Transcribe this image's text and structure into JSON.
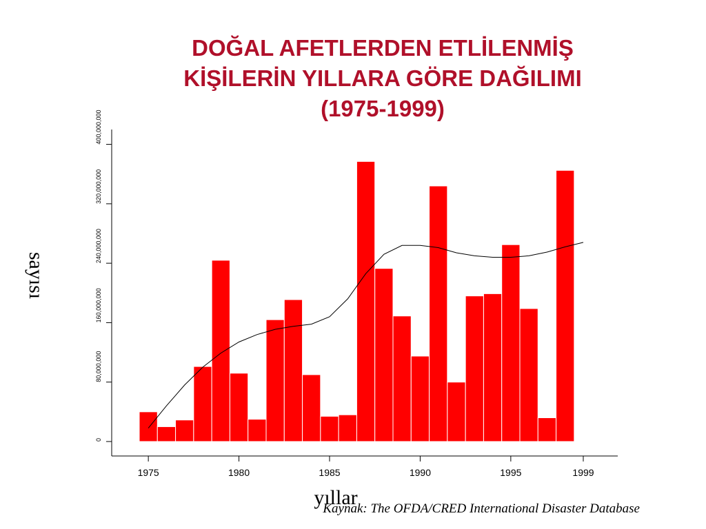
{
  "title": {
    "line1": "DOĞAL AFETLERDEN ETLİLENMİŞ",
    "line2": "KİŞİLERİN YILLARA GÖRE DAĞILIMI",
    "line3": "(1975-1999)"
  },
  "source": "Kaynak: The OFDA/CRED International Disaster Database",
  "colors": {
    "title": "#b0102a",
    "bars": "#ff0000",
    "trend": "#000000"
  },
  "chart_data": {
    "type": "bar",
    "xlabel": "yıllar",
    "ylabel": "sayısı",
    "x": [
      1975,
      1976,
      1977,
      1978,
      1979,
      1980,
      1981,
      1982,
      1983,
      1984,
      1985,
      1986,
      1987,
      1988,
      1989,
      1990,
      1991,
      1992,
      1993,
      1994,
      1995,
      1996,
      1997,
      1998
    ],
    "values": [
      40000000,
      20000000,
      29000000,
      101000000,
      244000000,
      92000000,
      30000000,
      164000000,
      191000000,
      90000000,
      34000000,
      36000000,
      377000000,
      233000000,
      169000000,
      115000000,
      344000000,
      80000000,
      196000000,
      199000000,
      265000000,
      179000000,
      32000000,
      365000000
    ],
    "trend": {
      "x": [
        1975,
        1976,
        1977,
        1978,
        1979,
        1980,
        1981,
        1982,
        1983,
        1984,
        1985,
        1986,
        1987,
        1988,
        1989,
        1990,
        1991,
        1992,
        1993,
        1994,
        1995,
        1996,
        1997,
        1998,
        1999
      ],
      "y": [
        18000000,
        48000000,
        76000000,
        100000000,
        119000000,
        134000000,
        144000000,
        151000000,
        155000000,
        158000000,
        168000000,
        192000000,
        226000000,
        252000000,
        264000000,
        264000000,
        261000000,
        254000000,
        250000000,
        248000000,
        248000000,
        250000000,
        255000000,
        262000000,
        268000000
      ]
    },
    "xticks": [
      "1975",
      "1980",
      "1985",
      "1990",
      "1995",
      "1999"
    ],
    "yticks": [
      "0",
      "80,000,000",
      "160,000,000",
      "240,000,000",
      "320,000,000",
      "400,000,000"
    ],
    "ylim": [
      0,
      420000000
    ],
    "xlim": [
      1974.5,
      1999
    ]
  }
}
